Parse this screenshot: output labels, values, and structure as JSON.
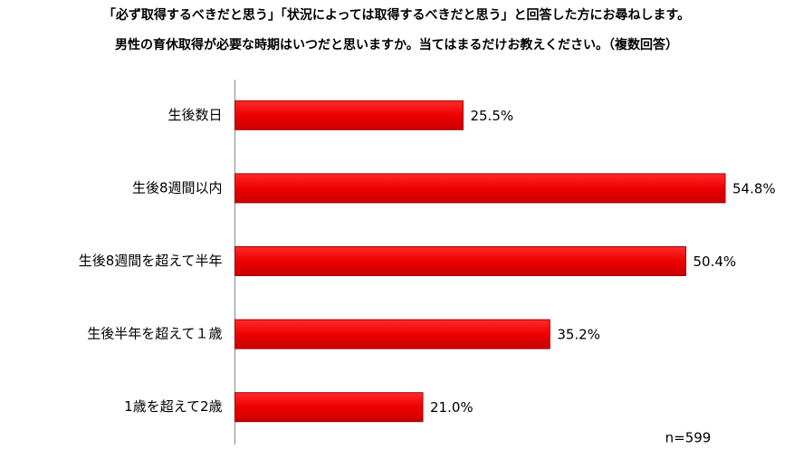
{
  "chart_data": {
    "type": "bar",
    "orientation": "horizontal",
    "title": "「必ず取得するべきだと思う」「状況によっては取得するべきだと思う」と回答した方にお尋ねします。",
    "subtitle": "男性の育休取得が必要な時期はいつだと思いますか。当てはまるだけお教えください。（複数回答）",
    "categories": [
      "生後数日",
      "生後8週間以内",
      "生後8週間を超えて半年",
      "生後半年を超えて１歳",
      "1歳を超えて2歳"
    ],
    "values": [
      25.5,
      54.8,
      50.4,
      35.2,
      21.0
    ],
    "value_labels": [
      "25.5%",
      "54.8%",
      "50.4%",
      "35.2%",
      "21.0%"
    ],
    "color": "#ee0000",
    "annotation": "n=599"
  }
}
